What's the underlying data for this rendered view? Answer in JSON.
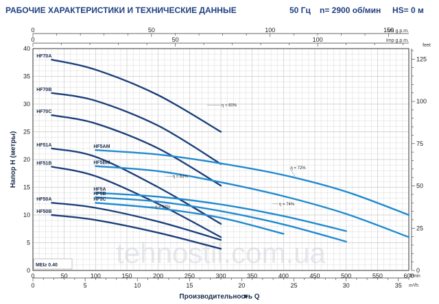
{
  "header": {
    "left": "РАБОЧИЕ ХАРАКТЕРИСТИКИ И ТЕХНИЧЕСКИЕ ДАННЫЕ",
    "freq": "50 Гц",
    "rpm": "n= 2900 об/мин",
    "hs": "HS= 0 м"
  },
  "watermark": "tehnostil.com.ua",
  "mei": "MEI≥ 0.40",
  "colors": {
    "dark": "#1b3f7a",
    "light": "#1f8ad0",
    "grid": "#c9c9c9",
    "axis": "#333333"
  },
  "chart_data": {
    "type": "line",
    "xlabel": "Производительность Q",
    "ylabel": "Напор H (метры)",
    "ylim": [
      0,
      40
    ],
    "grid": true,
    "axes": {
      "lmin": {
        "unit": "l/min",
        "range": [
          0,
          600
        ],
        "ticks": [
          0,
          50,
          100,
          150,
          200,
          250,
          300,
          350,
          400,
          450,
          500,
          550,
          600
        ]
      },
      "m3h": {
        "unit": "m³/h",
        "range": [
          0,
          36
        ],
        "ticks": [
          0,
          5,
          10,
          15,
          20,
          25,
          30,
          35
        ]
      },
      "usgpm": {
        "unit": "US g.p.m.",
        "range": [
          0,
          158.5
        ],
        "ticks": [
          0,
          50,
          100,
          150
        ]
      },
      "impgpm": {
        "unit": "Imp g.p.m.",
        "range": [
          0,
          132
        ],
        "ticks": [
          0,
          50,
          100
        ]
      },
      "feet": {
        "unit": "feet",
        "range": [
          0,
          131.2
        ],
        "ticks": [
          0,
          25,
          50,
          75,
          100,
          125
        ]
      },
      "metres": {
        "range": [
          0,
          40
        ],
        "ticks": [
          0,
          5,
          10,
          15,
          20,
          25,
          30,
          35,
          40
        ]
      }
    },
    "series": [
      {
        "name": "HF70A",
        "group": "dark",
        "x": [
          30,
          100,
          200,
          300
        ],
        "y": [
          38,
          36.2,
          31.6,
          25
        ]
      },
      {
        "name": "HF70B",
        "group": "dark",
        "x": [
          30,
          100,
          200,
          300
        ],
        "y": [
          32,
          30.6,
          26.1,
          19.2
        ]
      },
      {
        "name": "HF70C",
        "group": "dark",
        "x": [
          30,
          100,
          200,
          300
        ],
        "y": [
          28,
          26.5,
          22,
          15.3
        ]
      },
      {
        "name": "HF51A",
        "group": "dark",
        "x": [
          30,
          100,
          200,
          300
        ],
        "y": [
          22,
          20.5,
          15,
          8.4
        ]
      },
      {
        "name": "HF51B",
        "group": "dark",
        "x": [
          30,
          100,
          200,
          300
        ],
        "y": [
          18.7,
          17,
          12,
          6
        ]
      },
      {
        "name": "HF50A",
        "group": "dark",
        "x": [
          30,
          100,
          200,
          300
        ],
        "y": [
          12.2,
          11.3,
          8.8,
          5.5
        ]
      },
      {
        "name": "HF50B",
        "group": "dark",
        "x": [
          30,
          100,
          200,
          300
        ],
        "y": [
          10,
          9.1,
          6.8,
          3.9
        ]
      },
      {
        "name": "HF5AM",
        "group": "light",
        "x": [
          100,
          200,
          300,
          400,
          500,
          600
        ],
        "y": [
          21.7,
          20.9,
          19.3,
          17.2,
          14.2,
          10
        ]
      },
      {
        "name": "HF5BM",
        "group": "light",
        "x": [
          100,
          200,
          300,
          400,
          500,
          600
        ],
        "y": [
          18.8,
          17.9,
          15.9,
          13.4,
          10.2,
          6
        ]
      },
      {
        "name": "HF5A",
        "group": "light",
        "x": [
          100,
          200,
          300,
          400,
          500
        ],
        "y": [
          14,
          13.3,
          11.9,
          9.8,
          7.1
        ]
      },
      {
        "name": "HF5B",
        "group": "light",
        "x": [
          100,
          200,
          300,
          400,
          500
        ],
        "y": [
          13.2,
          12.4,
          10.7,
          8.3,
          5.2
        ]
      },
      {
        "name": "HF5C",
        "group": "light",
        "x": [
          100,
          200,
          300,
          400
        ],
        "y": [
          12.2,
          11.2,
          9.5,
          6.6
        ]
      }
    ],
    "annotations": [
      {
        "text": "η = 60%",
        "x": 278,
        "y": 29.8,
        "tx": 300,
        "ty": 29.8
      },
      {
        "text": "η = 63%",
        "x": 212,
        "y": 17,
        "tx": 222,
        "ty": 17
      },
      {
        "text": "η = 67%",
        "x": 188,
        "y": 11.5,
        "tx": 194,
        "ty": 11.5
      },
      {
        "text": "η = 72%",
        "x": 418,
        "y": 17,
        "tx": 410,
        "ty": 18.5
      },
      {
        "text": "η = 74%",
        "x": 382,
        "y": 12,
        "tx": 392,
        "ty": 12
      }
    ]
  }
}
